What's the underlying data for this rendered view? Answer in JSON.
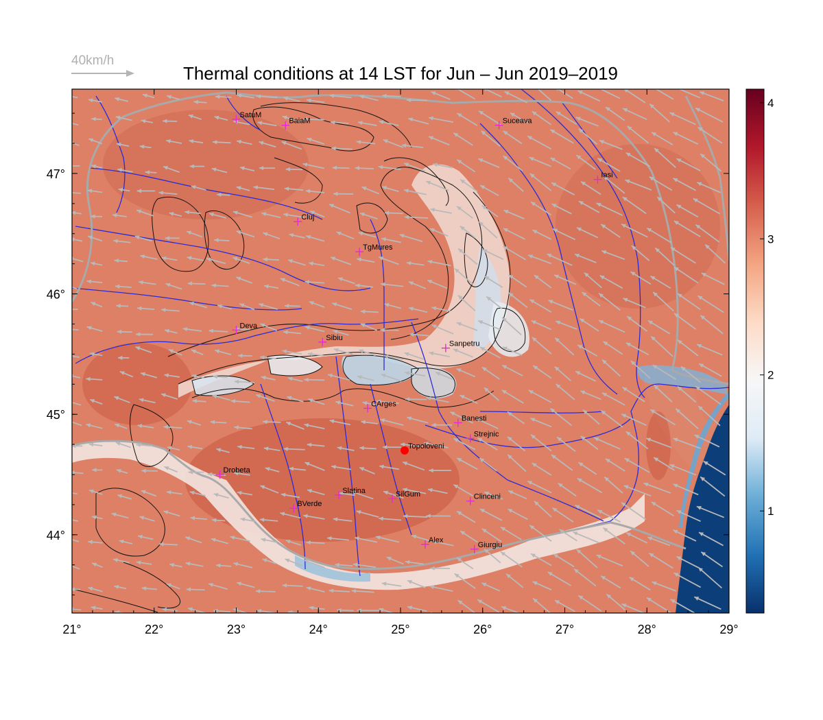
{
  "title": "Thermal conditions at 14 LST for Jun – Jun  2019–2019",
  "wind_reference": {
    "label": "40km/h",
    "speed_kmh": 40
  },
  "map": {
    "lon_range": [
      21,
      29
    ],
    "lat_range": [
      43.35,
      47.7
    ],
    "lon_ticks": [
      "21°",
      "22°",
      "23°",
      "24°",
      "25°",
      "26°",
      "27°",
      "28°",
      "29°"
    ],
    "lat_ticks": [
      "44°",
      "45°",
      "46°",
      "47°"
    ],
    "lon_tick_values": [
      21,
      22,
      23,
      24,
      25,
      26,
      27,
      28,
      29
    ],
    "lat_tick_values": [
      44,
      45,
      46,
      47
    ]
  },
  "colorbar": {
    "range": [
      0.25,
      4.1
    ],
    "ticks": [
      "1",
      "2",
      "3",
      "4"
    ],
    "tick_values": [
      1,
      2,
      3,
      4
    ],
    "colors": [
      "#08306b",
      "#2171b5",
      "#6baed6",
      "#deebf7",
      "#f7f7f7",
      "#fddbc7",
      "#f4a582",
      "#d6604d",
      "#b2182b",
      "#67001f"
    ]
  },
  "cities": [
    {
      "name": "SatuM",
      "lon": 23.0,
      "lat": 47.45
    },
    {
      "name": "BaiaM",
      "lon": 23.6,
      "lat": 47.4
    },
    {
      "name": "Suceava",
      "lon": 26.2,
      "lat": 47.4
    },
    {
      "name": "Iasi",
      "lon": 27.4,
      "lat": 46.95
    },
    {
      "name": "Cluj",
      "lon": 23.75,
      "lat": 46.6
    },
    {
      "name": "TgMures",
      "lon": 24.5,
      "lat": 46.35
    },
    {
      "name": "Deva",
      "lon": 23.0,
      "lat": 45.7
    },
    {
      "name": "Sibiu",
      "lon": 24.05,
      "lat": 45.6
    },
    {
      "name": "Sanpetru",
      "lon": 25.55,
      "lat": 45.55
    },
    {
      "name": "CArges",
      "lon": 24.6,
      "lat": 45.05
    },
    {
      "name": "Banesti",
      "lon": 25.7,
      "lat": 44.93
    },
    {
      "name": "Strejnic",
      "lon": 25.85,
      "lat": 44.8
    },
    {
      "name": "Topoloveni",
      "lon": 25.05,
      "lat": 44.7
    },
    {
      "name": "Drobeta",
      "lon": 22.8,
      "lat": 44.5
    },
    {
      "name": "Slatina",
      "lon": 24.25,
      "lat": 44.33
    },
    {
      "name": "SilGum",
      "lon": 24.9,
      "lat": 44.3
    },
    {
      "name": "Clinceni",
      "lon": 25.85,
      "lat": 44.28
    },
    {
      "name": "BVerde",
      "lon": 23.7,
      "lat": 44.22
    },
    {
      "name": "Alex",
      "lon": 25.3,
      "lat": 43.92
    },
    {
      "name": "Giurgiu",
      "lon": 25.9,
      "lat": 43.88
    }
  ],
  "highlight_station": "Topoloveni"
}
